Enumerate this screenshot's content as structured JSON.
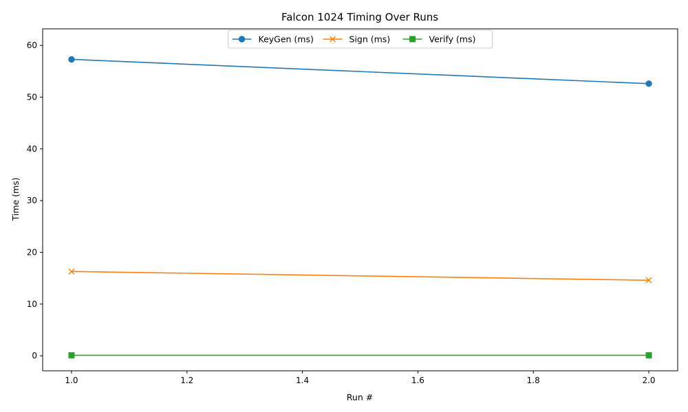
{
  "chart_data": {
    "type": "line",
    "title": "Falcon 1024 Timing Over Runs",
    "xlabel": "Run #",
    "ylabel": "Time (ms)",
    "xlim": [
      0.95,
      2.05
    ],
    "ylim": [
      -2.9,
      63.2
    ],
    "x_ticks": [
      1.0,
      1.2,
      1.4,
      1.6,
      1.8,
      2.0
    ],
    "x_tick_labels": [
      "1.0",
      "1.2",
      "1.4",
      "1.6",
      "1.8",
      "2.0"
    ],
    "y_ticks": [
      0,
      10,
      20,
      30,
      40,
      50,
      60
    ],
    "y_tick_labels": [
      "0",
      "10",
      "20",
      "30",
      "40",
      "50",
      "60"
    ],
    "grid": false,
    "legend_position": "upper center",
    "x": [
      1,
      2
    ],
    "series": [
      {
        "name": "KeyGen (ms)",
        "values": [
          57.3,
          52.6
        ],
        "color": "#1f77b4",
        "marker": "circle"
      },
      {
        "name": "Sign (ms)",
        "values": [
          16.3,
          14.6
        ],
        "color": "#ff7f0e",
        "marker": "x"
      },
      {
        "name": "Verify (ms)",
        "values": [
          0.1,
          0.1
        ],
        "color": "#2ca02c",
        "marker": "square"
      }
    ]
  }
}
